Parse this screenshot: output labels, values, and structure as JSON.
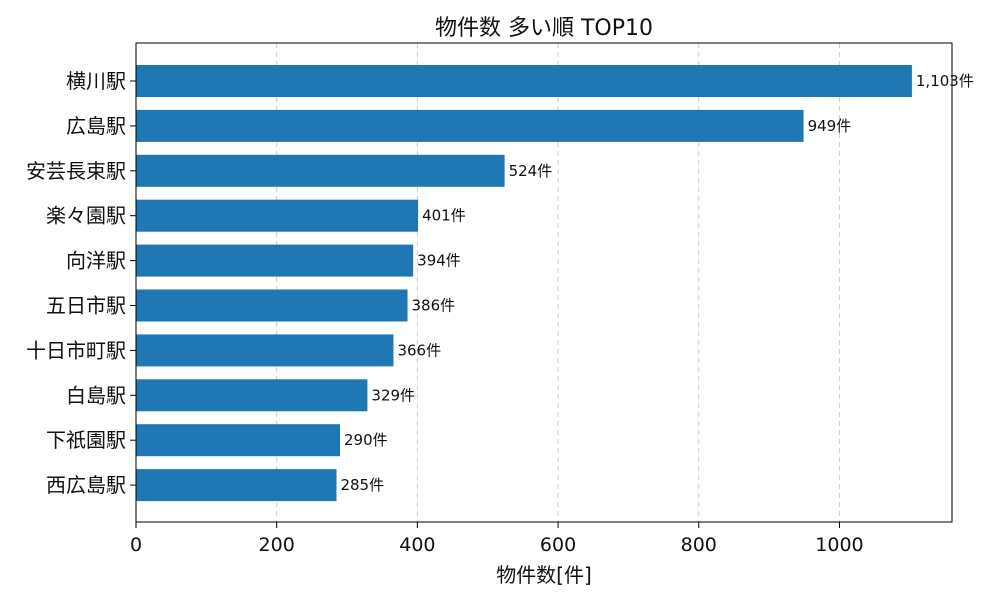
{
  "chart_data": {
    "type": "bar",
    "orientation": "horizontal",
    "title": "物件数 多い順 TOP10",
    "xlabel": "物件数[件]",
    "ylabel": "",
    "categories": [
      "横川駅",
      "広島駅",
      "安芸長束駅",
      "楽々園駅",
      "向洋駅",
      "五日市駅",
      "十日市町駅",
      "白島駅",
      "下祇園駅",
      "西広島駅"
    ],
    "values": [
      1103,
      949,
      524,
      401,
      394,
      386,
      366,
      329,
      290,
      285
    ],
    "data_labels": [
      "1,103件",
      "949件",
      "524件",
      "401件",
      "394件",
      "386件",
      "366件",
      "329件",
      "290件",
      "285件"
    ],
    "xlim": [
      0,
      1160
    ],
    "xticks": [
      0,
      200,
      400,
      600,
      800,
      1000
    ],
    "grid": "x-dashed",
    "bar_color": "#1f77b4"
  }
}
